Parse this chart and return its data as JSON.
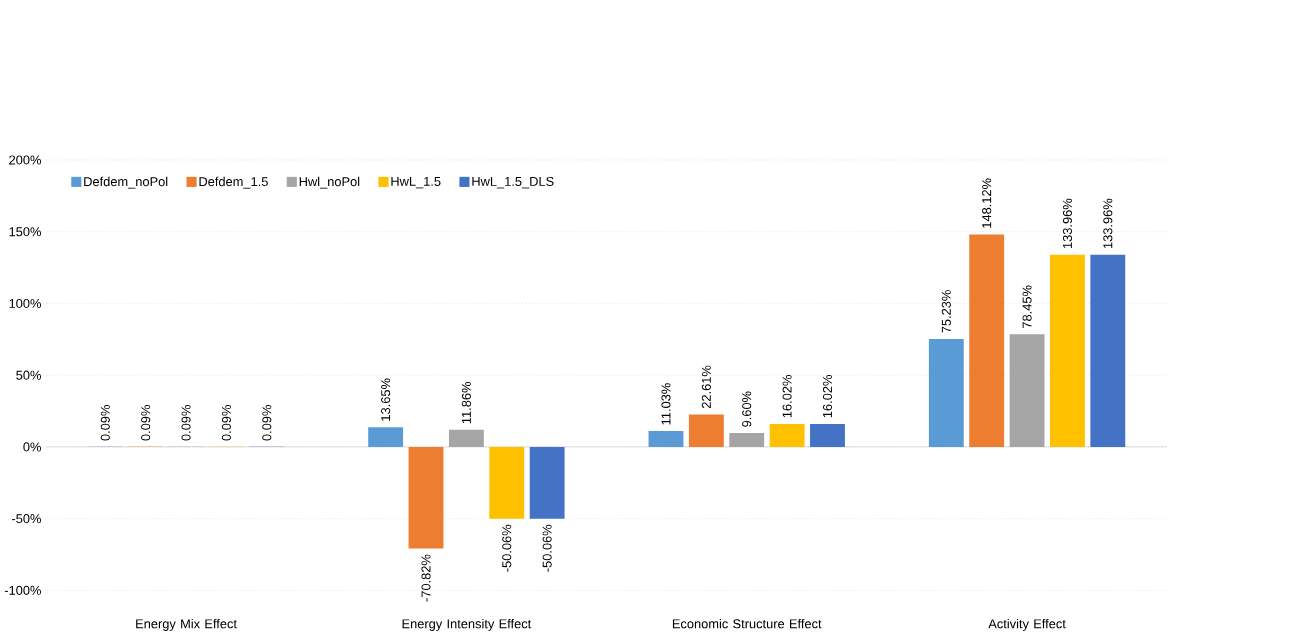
{
  "chart_data": {
    "type": "bar",
    "categories": [
      "Energy Mix Effect",
      "Energy Intensity Effect",
      "Economic Structure Effect",
      "Activity Effect"
    ],
    "series": [
      {
        "name": "Defdem_noPol",
        "color": "#5b9bd5",
        "values": [
          0.09,
          13.65,
          11.03,
          75.23
        ],
        "value_labels": [
          "0.09%",
          "13.65%",
          "11.03%",
          "75.23%"
        ]
      },
      {
        "name": "Defdem_1.5",
        "color": "#ed7d31",
        "values": [
          0.09,
          -70.82,
          22.61,
          148.12
        ],
        "value_labels": [
          "0.09%",
          "-70.82%",
          "22.61%",
          "148.12%"
        ]
      },
      {
        "name": "Hwl_noPol",
        "color": "#a5a5a5",
        "values": [
          0.09,
          11.86,
          9.6,
          78.45
        ],
        "value_labels": [
          "0.09%",
          "11.86%",
          "9.60%",
          "78.45%"
        ]
      },
      {
        "name": "HwL_1.5",
        "color": "#ffc000",
        "values": [
          0.09,
          -50.06,
          16.02,
          133.96
        ],
        "value_labels": [
          "0.09%",
          "-50.06%",
          "16.02%",
          "133.96%"
        ]
      },
      {
        "name": "HwL_1.5_DLS",
        "color": "#4472c4",
        "values": [
          0.09,
          -50.06,
          16.02,
          133.96
        ],
        "value_labels": [
          "0.09%",
          "-50.06%",
          "16.02%",
          "133.96%"
        ]
      }
    ],
    "ylim": [
      -100,
      200
    ],
    "yticks": [
      {
        "value": -100,
        "label": "-100%"
      },
      {
        "value": -50,
        "label": "-50%"
      },
      {
        "value": 0,
        "label": "0%"
      },
      {
        "value": 50,
        "label": "50%"
      },
      {
        "value": 100,
        "label": "100%"
      },
      {
        "value": 150,
        "label": "150%"
      },
      {
        "value": 200,
        "label": "200%"
      }
    ],
    "grid": "y",
    "legend": "top left"
  }
}
